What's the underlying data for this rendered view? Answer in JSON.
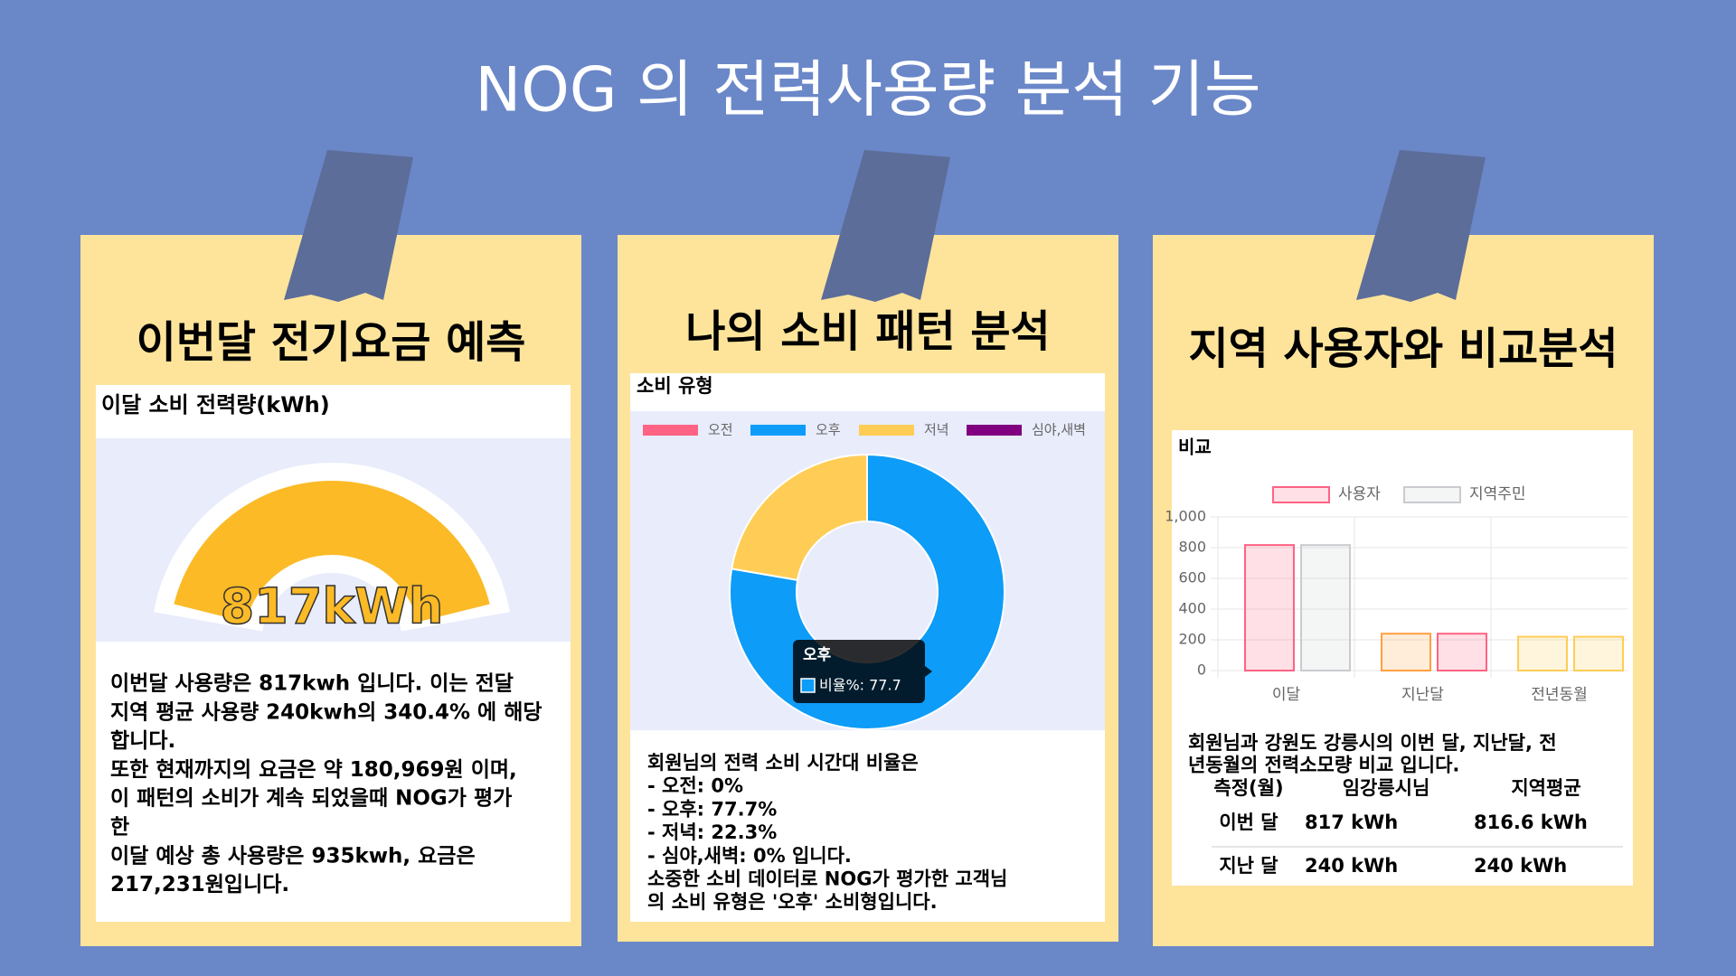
{
  "title": "NOG 의 전력사용량 분석 기능",
  "panels": [
    {
      "heading": "이번달 전기요금 예측",
      "card_title": "이달 소비 전력량(kWh)",
      "gauge": {
        "value": 817,
        "value_label": "817kWh",
        "color": "#fbba26"
      },
      "lines": [
        "이번달 사용량은 817kwh 입니다. 이는 전달",
        "지역 평균 사용량 240kwh의 340.4% 에 해당",
        "합니다.",
        "또한 현재까지의 요금은 약 180,969원 이며,",
        "이 패턴의 소비가 계속 되었을때 NOG가 평가",
        "한",
        "이달 예상 총 사용량은 935kwh, 요금은",
        "217,231원입니다."
      ]
    },
    {
      "heading": "나의 소비 패턴 분석",
      "card_title": "소비 유형",
      "chart": {
        "type": "doughnut",
        "categories": [
          "오전",
          "오후",
          "저녁",
          "심야,새벽"
        ],
        "values": [
          0,
          77.7,
          22.3,
          0
        ],
        "colors": [
          "#ff6384",
          "#0d9cf7",
          "#ffcd56",
          "#800080"
        ],
        "tooltip": {
          "title": "오후",
          "body": "비율%: 77.7"
        }
      },
      "lines": [
        "회원님의 전력 소비 시간대 비율은",
        "- 오전: 0%",
        "- 오후: 77.7%",
        "- 저녁: 22.3%",
        "- 심야,새벽: 0% 입니다.",
        "소중한 소비 데이터로 NOG가 평가한 고객님",
        "의 소비 유형은 '오후' 소비형입니다."
      ]
    },
    {
      "heading": "지역 사용자와 비교분석",
      "card_title": "비교",
      "chart": {
        "type": "bar",
        "categories": [
          "이달",
          "지난달",
          "전년동월"
        ],
        "series": [
          {
            "name": "사용자",
            "values": [
              817,
              240,
              220
            ],
            "colors": [
              "rgba(255,99,132,0.2)",
              "rgba(255,159,64,0.2)",
              "rgba(255,205,86,0.2)"
            ],
            "border_colors": [
              "#ff6384",
              "#ff9f40",
              "#ffcd56"
            ]
          },
          {
            "name": "지역주민",
            "values": [
              816.6,
              240,
              220
            ],
            "colors": [
              "rgba(201,203,207,0.2)",
              "rgba(255,99,132,0.2)",
              "rgba(255,205,86,0.2)"
            ],
            "border_colors": [
              "#c9cbcf",
              "#ff6384",
              "#ffcd56"
            ]
          }
        ],
        "ylim": [
          0,
          1000
        ],
        "yticks": [
          0,
          200,
          400,
          600,
          800,
          {
            "value": 1000,
            "label": "1,000"
          }
        ],
        "grid": true
      },
      "lines": [
        "회원님과 강원도 강릉시의 이번 달, 지난달, 전",
        "년동월의 전력소모량 비교 입니다."
      ],
      "table": {
        "header": [
          "측정(월)",
          "임강릉시님",
          "지역평균"
        ],
        "rows": [
          [
            "이번 달",
            "817 kWh",
            "816.6 kWh"
          ],
          [
            "지난 달",
            "240 kWh",
            "240 kWh"
          ]
        ]
      }
    }
  ]
}
